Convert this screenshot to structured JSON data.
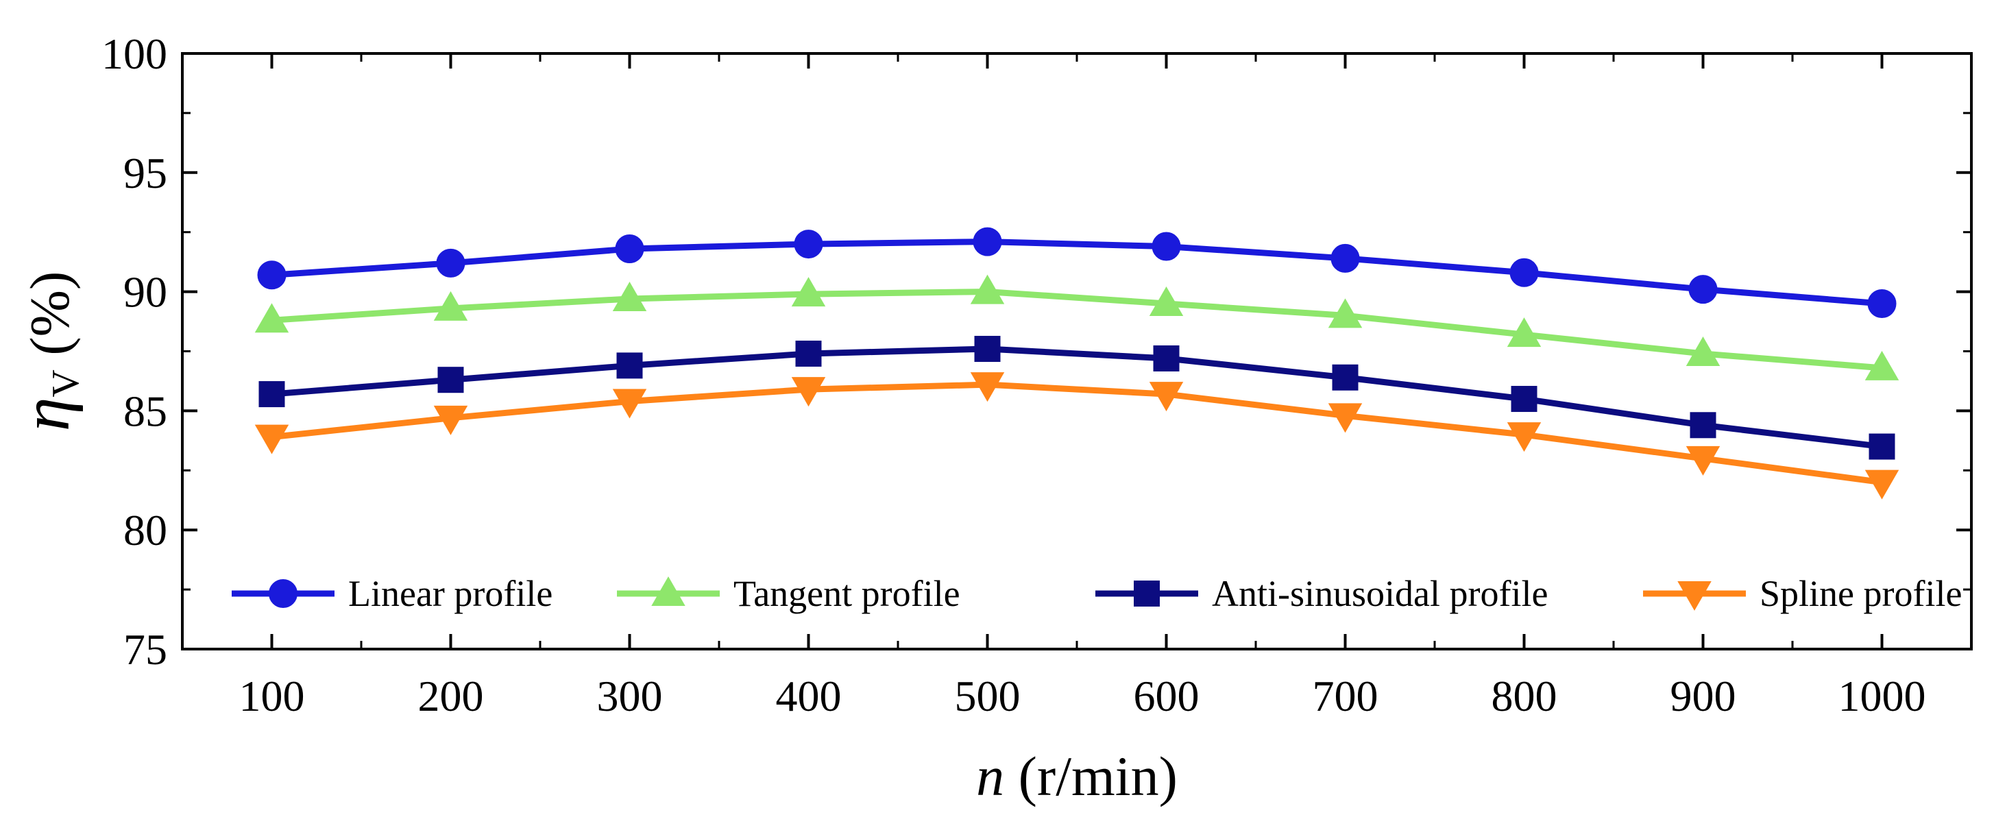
{
  "chart_data": {
    "type": "line",
    "title": "",
    "xlabel": {
      "italic": "n",
      "rest": " (r/min)"
    },
    "ylabel": {
      "symbol": "η",
      "subscript": "V",
      "rest": " (%)"
    },
    "xlim": [
      50,
      1050
    ],
    "ylim": [
      75,
      100
    ],
    "x": [
      100,
      200,
      300,
      400,
      500,
      600,
      700,
      800,
      900,
      1000
    ],
    "x_ticks": [
      "100",
      "200",
      "300",
      "400",
      "500",
      "600",
      "700",
      "800",
      "900",
      "1000"
    ],
    "y_ticks": [
      "75",
      "80",
      "85",
      "90",
      "95",
      "100"
    ],
    "grid": false,
    "legend_placement": "bottom, single row",
    "series": [
      {
        "name": "Linear profile",
        "color": "#1a1adb",
        "marker": "circle",
        "values": [
          90.7,
          91.2,
          91.8,
          92.0,
          92.1,
          91.9,
          91.4,
          90.8,
          90.1,
          89.5
        ]
      },
      {
        "name": "Tangent profile",
        "color": "#8ee66b",
        "marker": "triangle-up",
        "values": [
          88.8,
          89.3,
          89.7,
          89.9,
          90.0,
          89.5,
          89.0,
          88.2,
          87.4,
          86.8
        ]
      },
      {
        "name": "Anti-sinusoidal profile",
        "color": "#0c0c80",
        "marker": "square",
        "values": [
          85.7,
          86.3,
          86.9,
          87.4,
          87.6,
          87.2,
          86.4,
          85.5,
          84.4,
          83.5
        ]
      },
      {
        "name": "Spline profile",
        "color": "#ff8418",
        "marker": "triangle-down",
        "values": [
          83.9,
          84.7,
          85.4,
          85.9,
          86.1,
          85.7,
          84.8,
          84.0,
          83.0,
          82.0
        ]
      }
    ]
  }
}
